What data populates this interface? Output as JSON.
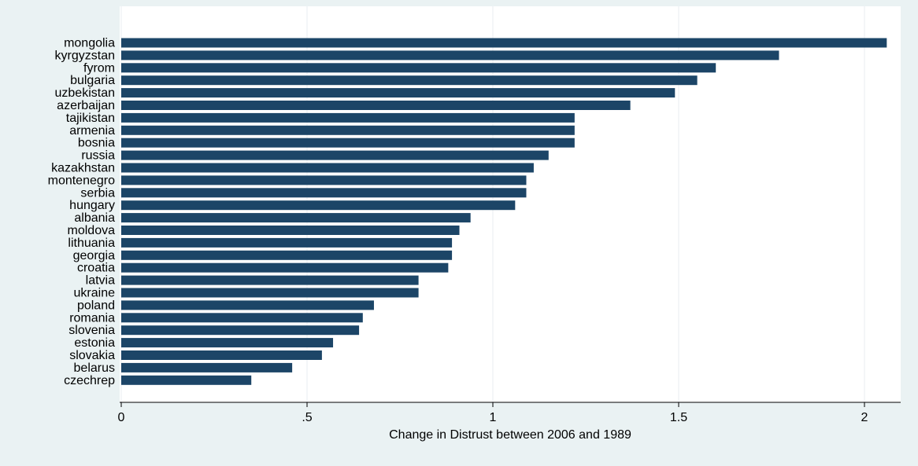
{
  "chart_data": {
    "type": "bar",
    "orientation": "horizontal",
    "categories": [
      "mongolia",
      "kyrgyzstan",
      "fyrom",
      "bulgaria",
      "uzbekistan",
      "azerbaijan",
      "tajikistan",
      "armenia",
      "bosnia",
      "russia",
      "kazakhstan",
      "montenegro",
      "serbia",
      "hungary",
      "albania",
      "moldova",
      "lithuania",
      "georgia",
      "croatia",
      "latvia",
      "ukraine",
      "poland",
      "romania",
      "slovenia",
      "estonia",
      "slovakia",
      "belarus",
      "czechrep"
    ],
    "values": [
      2.06,
      1.77,
      1.6,
      1.55,
      1.49,
      1.37,
      1.22,
      1.22,
      1.22,
      1.15,
      1.11,
      1.09,
      1.09,
      1.06,
      0.94,
      0.91,
      0.89,
      0.89,
      0.88,
      0.8,
      0.8,
      0.68,
      0.65,
      0.64,
      0.57,
      0.54,
      0.46,
      0.35
    ],
    "xlabel": "Change in Distrust between 2006 and 1989",
    "xlim": [
      0,
      2.1
    ],
    "xticks": [
      0,
      0.5,
      1,
      1.5,
      2
    ],
    "xtick_labels": [
      "0",
      ".5",
      "1",
      "1.5",
      "2"
    ],
    "grid": true,
    "colors": {
      "bar": "#1c4567",
      "plot_bg": "#ffffff",
      "page_bg": "#eaf2f3",
      "grid": "#e8eef0",
      "axis": "#000000"
    }
  }
}
